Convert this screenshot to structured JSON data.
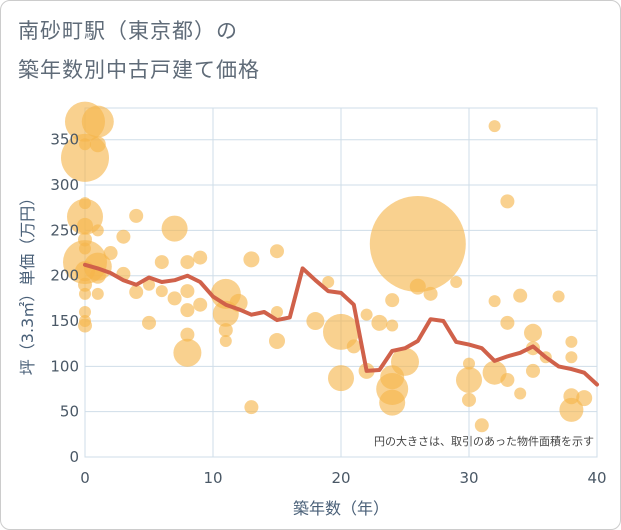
{
  "title_line1": "南砂町駅（東京都）の",
  "title_line2": "築年数別中古戸建て価格",
  "chart_data": {
    "type": "scatter",
    "xlabel": "築年数（年）",
    "ylabel": "坪（3.3㎡）単価（万円）",
    "xlim": [
      0,
      40
    ],
    "ylim": [
      0,
      385
    ],
    "x_ticks": [
      0,
      10,
      20,
      30,
      40
    ],
    "y_ticks": [
      0,
      50,
      100,
      150,
      200,
      250,
      300,
      350
    ],
    "grid": true,
    "note": "円の大きさは、取引のあった物件面積を示す",
    "colors": {
      "bubble": "#f5b54a",
      "line": "#d0614a",
      "grid": "#cfdde8"
    },
    "points": [
      {
        "x": 0,
        "y": 370,
        "s": 20
      },
      {
        "x": 1,
        "y": 370,
        "s": 16
      },
      {
        "x": 0,
        "y": 330,
        "s": 24
      },
      {
        "x": 1,
        "y": 345,
        "s": 8
      },
      {
        "x": 0,
        "y": 345,
        "s": 6
      },
      {
        "x": 0,
        "y": 280,
        "s": 6
      },
      {
        "x": 0,
        "y": 265,
        "s": 18
      },
      {
        "x": 0,
        "y": 255,
        "s": 8
      },
      {
        "x": 1,
        "y": 250,
        "s": 6
      },
      {
        "x": 0,
        "y": 240,
        "s": 7
      },
      {
        "x": 0,
        "y": 230,
        "s": 6
      },
      {
        "x": 0,
        "y": 215,
        "s": 22
      },
      {
        "x": 1,
        "y": 210,
        "s": 14
      },
      {
        "x": 0,
        "y": 205,
        "s": 10
      },
      {
        "x": 1,
        "y": 200,
        "s": 8
      },
      {
        "x": 0,
        "y": 190,
        "s": 7
      },
      {
        "x": 0,
        "y": 180,
        "s": 6
      },
      {
        "x": 1,
        "y": 180,
        "s": 6
      },
      {
        "x": 0,
        "y": 160,
        "s": 6
      },
      {
        "x": 0,
        "y": 150,
        "s": 6
      },
      {
        "x": 0,
        "y": 145,
        "s": 7
      },
      {
        "x": 2,
        "y": 225,
        "s": 7
      },
      {
        "x": 3,
        "y": 243,
        "s": 7
      },
      {
        "x": 4,
        "y": 266,
        "s": 7
      },
      {
        "x": 3,
        "y": 202,
        "s": 7
      },
      {
        "x": 4,
        "y": 182,
        "s": 7
      },
      {
        "x": 5,
        "y": 190,
        "s": 6
      },
      {
        "x": 5,
        "y": 148,
        "s": 7
      },
      {
        "x": 6,
        "y": 215,
        "s": 7
      },
      {
        "x": 6,
        "y": 183,
        "s": 6
      },
      {
        "x": 7,
        "y": 252,
        "s": 13
      },
      {
        "x": 7,
        "y": 175,
        "s": 7
      },
      {
        "x": 8,
        "y": 215,
        "s": 7
      },
      {
        "x": 8,
        "y": 183,
        "s": 7
      },
      {
        "x": 8,
        "y": 162,
        "s": 7
      },
      {
        "x": 8,
        "y": 135,
        "s": 7
      },
      {
        "x": 8,
        "y": 115,
        "s": 14
      },
      {
        "x": 9,
        "y": 220,
        "s": 7
      },
      {
        "x": 9,
        "y": 168,
        "s": 7
      },
      {
        "x": 11,
        "y": 180,
        "s": 15
      },
      {
        "x": 11,
        "y": 158,
        "s": 13
      },
      {
        "x": 11,
        "y": 140,
        "s": 7
      },
      {
        "x": 11,
        "y": 128,
        "s": 6
      },
      {
        "x": 12,
        "y": 170,
        "s": 9
      },
      {
        "x": 13,
        "y": 218,
        "s": 8
      },
      {
        "x": 13,
        "y": 55,
        "s": 7
      },
      {
        "x": 15,
        "y": 227,
        "s": 7
      },
      {
        "x": 15,
        "y": 160,
        "s": 6
      },
      {
        "x": 15,
        "y": 128,
        "s": 8
      },
      {
        "x": 18,
        "y": 150,
        "s": 9
      },
      {
        "x": 19,
        "y": 193,
        "s": 6
      },
      {
        "x": 20,
        "y": 138,
        "s": 18
      },
      {
        "x": 20,
        "y": 87,
        "s": 13
      },
      {
        "x": 21,
        "y": 122,
        "s": 7
      },
      {
        "x": 22,
        "y": 95,
        "s": 8
      },
      {
        "x": 22,
        "y": 157,
        "s": 6
      },
      {
        "x": 23,
        "y": 148,
        "s": 8
      },
      {
        "x": 24,
        "y": 173,
        "s": 7
      },
      {
        "x": 24,
        "y": 145,
        "s": 6
      },
      {
        "x": 24,
        "y": 60,
        "s": 13
      },
      {
        "x": 24,
        "y": 75,
        "s": 16
      },
      {
        "x": 24,
        "y": 88,
        "s": 12
      },
      {
        "x": 25,
        "y": 105,
        "s": 14
      },
      {
        "x": 26,
        "y": 235,
        "s": 48
      },
      {
        "x": 26,
        "y": 188,
        "s": 8
      },
      {
        "x": 27,
        "y": 180,
        "s": 7
      },
      {
        "x": 29,
        "y": 193,
        "s": 6
      },
      {
        "x": 30,
        "y": 103,
        "s": 6
      },
      {
        "x": 30,
        "y": 85,
        "s": 13
      },
      {
        "x": 30,
        "y": 63,
        "s": 7
      },
      {
        "x": 31,
        "y": 35,
        "s": 7
      },
      {
        "x": 32,
        "y": 365,
        "s": 6
      },
      {
        "x": 32,
        "y": 172,
        "s": 6
      },
      {
        "x": 32,
        "y": 93,
        "s": 12
      },
      {
        "x": 33,
        "y": 282,
        "s": 7
      },
      {
        "x": 33,
        "y": 148,
        "s": 7
      },
      {
        "x": 33,
        "y": 85,
        "s": 7
      },
      {
        "x": 34,
        "y": 178,
        "s": 7
      },
      {
        "x": 34,
        "y": 70,
        "s": 6
      },
      {
        "x": 35,
        "y": 137,
        "s": 9
      },
      {
        "x": 35,
        "y": 120,
        "s": 7
      },
      {
        "x": 35,
        "y": 95,
        "s": 7
      },
      {
        "x": 36,
        "y": 110,
        "s": 6
      },
      {
        "x": 37,
        "y": 177,
        "s": 6
      },
      {
        "x": 38,
        "y": 127,
        "s": 6
      },
      {
        "x": 38,
        "y": 110,
        "s": 6
      },
      {
        "x": 38,
        "y": 67,
        "s": 8
      },
      {
        "x": 38,
        "y": 52,
        "s": 12
      },
      {
        "x": 39,
        "y": 65,
        "s": 8
      }
    ],
    "line": {
      "x": [
        0,
        1,
        2,
        3,
        4,
        5,
        6,
        7,
        8,
        9,
        10,
        11,
        12,
        13,
        14,
        15,
        16,
        17,
        18,
        19,
        20,
        21,
        22,
        23,
        24,
        25,
        26,
        27,
        28,
        29,
        30,
        31,
        32,
        33,
        34,
        35,
        36,
        37,
        38,
        39,
        40
      ],
      "y": [
        212,
        208,
        203,
        195,
        190,
        198,
        193,
        195,
        200,
        193,
        177,
        168,
        163,
        157,
        160,
        151,
        154,
        208,
        195,
        183,
        181,
        168,
        95,
        96,
        117,
        120,
        128,
        152,
        150,
        127,
        124,
        120,
        106,
        111,
        115,
        122,
        110,
        100,
        97,
        93,
        80
      ]
    }
  }
}
